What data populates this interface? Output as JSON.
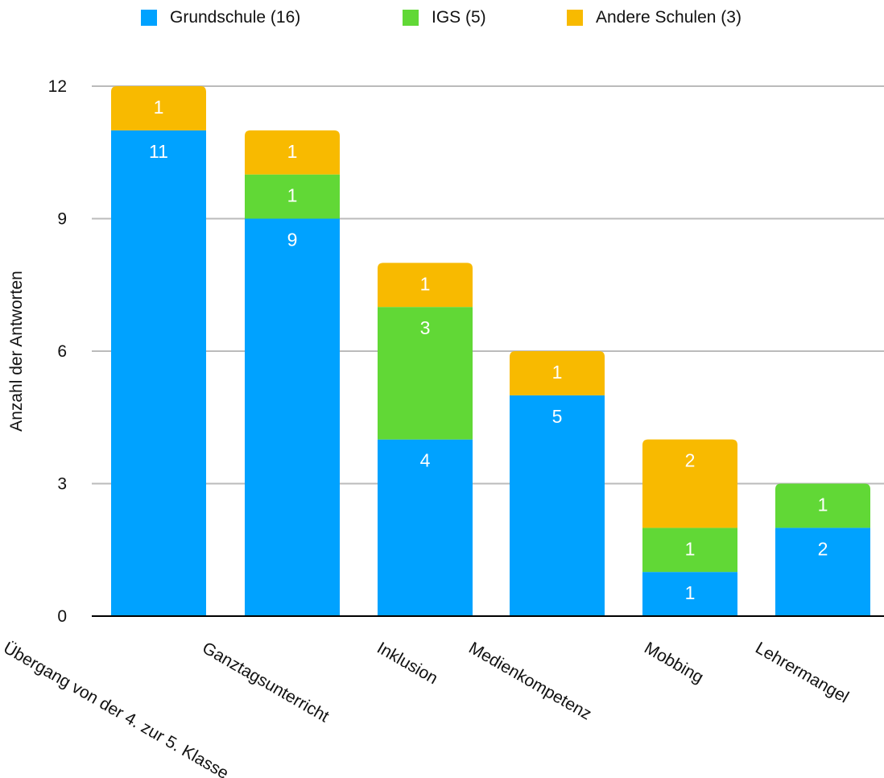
{
  "chart_data": {
    "type": "bar",
    "stacked": true,
    "categories": [
      "Übergang von der 4. zur 5. Klasse",
      "Ganztagsunterricht",
      "Inklusion",
      "Medienkompetenz",
      "Mobbing",
      "Lehrermangel"
    ],
    "series": [
      {
        "name": "Grundschule (16)",
        "color": "#00a2ff",
        "values": [
          11,
          9,
          4,
          5,
          1,
          2
        ]
      },
      {
        "name": "IGS (5)",
        "color": "#61d836",
        "values": [
          0,
          1,
          3,
          0,
          1,
          1
        ]
      },
      {
        "name": "Andere Schulen (3)",
        "color": "#f8ba00",
        "values": [
          1,
          1,
          1,
          1,
          2,
          0
        ]
      }
    ],
    "title": "",
    "xlabel": "",
    "ylabel": "Anzahl der Antworten",
    "ylim": [
      0,
      12
    ],
    "yticks": [
      0,
      3,
      6,
      9,
      12
    ],
    "grid": true,
    "legend_position": "top"
  }
}
